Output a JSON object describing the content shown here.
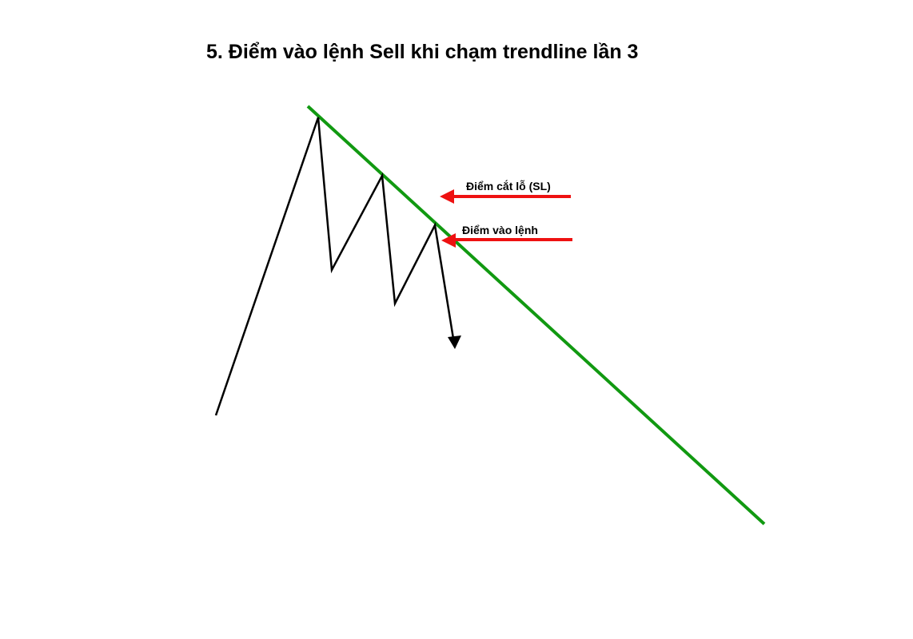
{
  "title": "5. Điểm vào lệnh Sell khi chạm trendline lần 3",
  "annotations": {
    "stop_loss": "Điểm cắt lỗ (SL)",
    "entry": "Điểm vào lệnh"
  },
  "colors": {
    "trendline": "#119911",
    "price_path": "#000000",
    "pointer_arrows": "#ee1111",
    "background": "#ffffff"
  },
  "icons": {
    "down_arrow": "arrowhead-down-icon",
    "left_arrow": "arrowhead-left-icon"
  }
}
